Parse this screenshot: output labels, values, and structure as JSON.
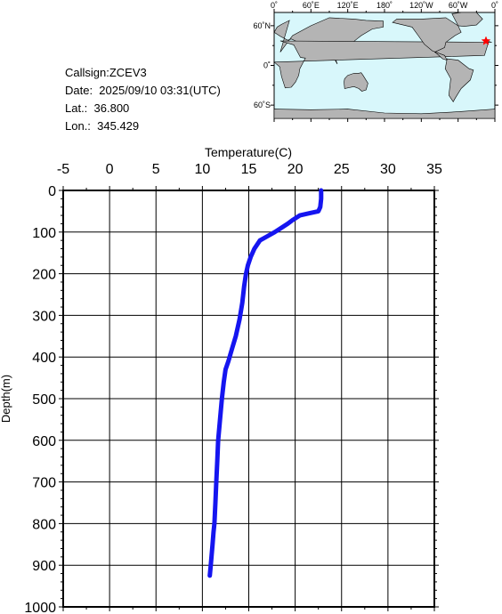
{
  "info": {
    "callsign_line": "Callsign:ZCEV3",
    "date_line": "Date:  2025/09/10 03:31(UTC)",
    "lat_line": "Lat.:  36.800",
    "lon_line": "Lon.:  345.429"
  },
  "map": {
    "lon_labels": [
      "0˚",
      "60˚E",
      "120˚E",
      "180˚",
      "120˚W",
      "60˚W",
      "0˚"
    ],
    "lat_labels": [
      "60˚N",
      "0˚",
      "60˚S"
    ],
    "ocean_color": "#d8f7fb",
    "land_color": "#b4b4b4",
    "marker_color": "#ff0000",
    "marker_lat": 36.8,
    "marker_lon": 345.429
  },
  "chart_data": {
    "type": "line",
    "xlabel": "Temperature(C)",
    "ylabel": "Depth(m)",
    "xlim": [
      -5,
      35
    ],
    "ylim": [
      1000,
      0
    ],
    "x_ticks": [
      "-5",
      "0",
      "5",
      "10",
      "15",
      "20",
      "25",
      "30",
      "35"
    ],
    "y_ticks": [
      "0",
      "100",
      "200",
      "300",
      "400",
      "500",
      "600",
      "700",
      "800",
      "900",
      "1000"
    ],
    "grid": true,
    "line_color": "#1515f0",
    "series": [
      {
        "x": [
          22.8,
          22.8,
          22.7,
          22.5,
          21.5,
          20.5,
          19.8,
          19.2,
          18.5,
          17.8,
          17.0,
          16.2,
          15.6,
          15.2,
          14.9,
          14.7,
          14.5,
          14.3,
          14.0,
          13.6,
          13.2,
          12.8,
          12.5,
          12.3,
          12.1,
          11.9,
          11.7,
          11.6,
          11.5,
          11.4,
          11.3,
          11.2,
          11.1,
          10.9,
          10.8
        ],
        "y": [
          0,
          20,
          40,
          50,
          55,
          60,
          70,
          80,
          90,
          100,
          110,
          120,
          140,
          160,
          180,
          200,
          230,
          270,
          310,
          350,
          380,
          410,
          430,
          460,
          500,
          550,
          600,
          650,
          700,
          750,
          800,
          820,
          850,
          900,
          925
        ]
      }
    ]
  }
}
